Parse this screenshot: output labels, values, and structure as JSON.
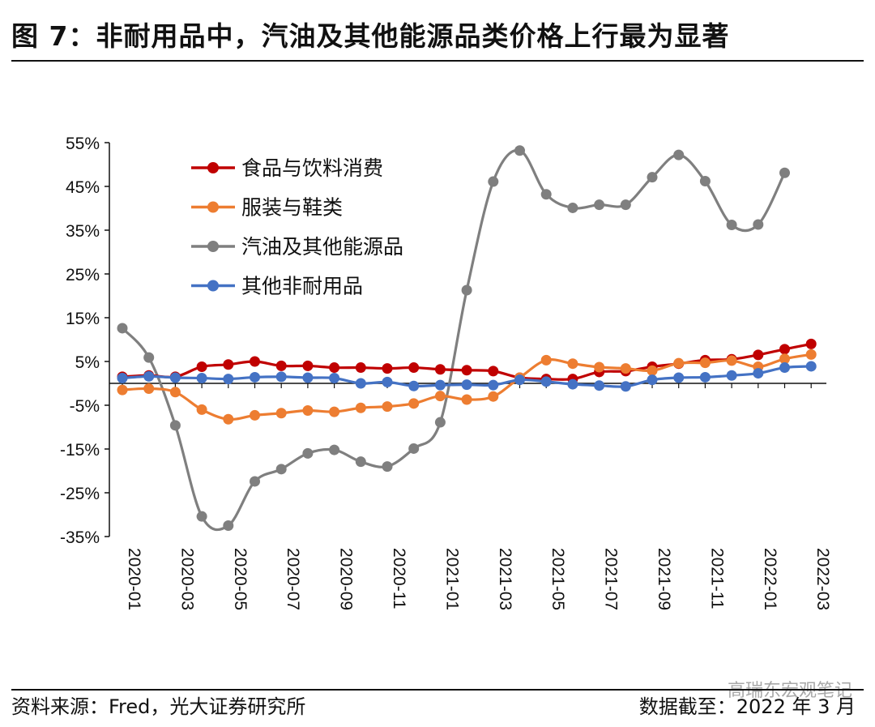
{
  "header": {
    "title": "图 7：非耐用品中，汽油及其他能源品类价格上行最为显著"
  },
  "footer": {
    "source": "资料来源：Fred，光大证券研究所",
    "cutoff": "数据截至：2022 年 3 月",
    "watermark": "高瑞东宏观笔记"
  },
  "chart_data": {
    "type": "line",
    "title": "",
    "xlabel": "",
    "ylabel": "",
    "ylim": [
      -35,
      55
    ],
    "y_ticks": [
      55,
      45,
      35,
      25,
      15,
      5,
      -5,
      -15,
      -25,
      -35
    ],
    "y_tick_labels": [
      "55%",
      "45%",
      "35%",
      "25%",
      "15%",
      "5%",
      "-5%",
      "-15%",
      "-25%",
      "-35%"
    ],
    "x": [
      "2020-01",
      "2020-02",
      "2020-03",
      "2020-04",
      "2020-05",
      "2020-06",
      "2020-07",
      "2020-08",
      "2020-09",
      "2020-10",
      "2020-11",
      "2020-12",
      "2021-01",
      "2021-02",
      "2021-03",
      "2021-04",
      "2021-05",
      "2021-06",
      "2021-07",
      "2021-08",
      "2021-09",
      "2021-10",
      "2021-11",
      "2021-12",
      "2022-01",
      "2022-02",
      "2022-03"
    ],
    "x_tick_labels": [
      "2020-01",
      "2020-03",
      "2020-05",
      "2020-07",
      "2020-09",
      "2020-11",
      "2021-01",
      "2021-03",
      "2021-05",
      "2021-07",
      "2021-09",
      "2021-11",
      "2022-01",
      "2022-03"
    ],
    "grid": false,
    "legend_position": "top-left",
    "series": [
      {
        "name": "食品与饮料消费",
        "color": "#c00000",
        "values": [
          1.5,
          1.8,
          1.5,
          3.8,
          4.3,
          5.0,
          4.0,
          4.0,
          3.6,
          3.6,
          3.4,
          3.6,
          3.2,
          3.0,
          2.8,
          1.3,
          1.0,
          1.0,
          2.6,
          2.8,
          3.8,
          4.5,
          5.3,
          5.5,
          6.5,
          7.8,
          9.0
        ]
      },
      {
        "name": "服装与鞋类",
        "color": "#ed7d31",
        "values": [
          -1.5,
          -1.2,
          -2.0,
          -6.0,
          -8.2,
          -7.3,
          -6.8,
          -6.2,
          -6.5,
          -5.6,
          -5.3,
          -4.6,
          -2.9,
          -3.7,
          -3.0,
          1.3,
          5.3,
          4.5,
          3.7,
          3.4,
          2.9,
          4.6,
          4.7,
          5.2,
          3.8,
          5.6,
          6.6
        ]
      },
      {
        "name": "汽油及其他能源品",
        "color": "#7f7f7f",
        "values": [
          12.6,
          5.9,
          -9.6,
          -30.4,
          -32.5,
          -22.4,
          -19.6,
          -16.0,
          -15.2,
          -17.9,
          -19.0,
          -14.9,
          -8.9,
          21.3,
          46.1,
          53.2,
          43.2,
          40.1,
          40.8,
          40.8,
          47.1,
          52.2,
          46.2,
          36.2,
          36.3,
          48.1,
          null
        ]
      },
      {
        "name": "其他非耐用品",
        "color": "#4472c4",
        "values": [
          1.2,
          1.6,
          1.3,
          1.2,
          1.0,
          1.4,
          1.5,
          1.3,
          1.2,
          0.0,
          0.3,
          -0.6,
          -0.4,
          -0.3,
          -0.4,
          0.8,
          0.4,
          -0.2,
          -0.5,
          -0.7,
          0.8,
          1.3,
          1.4,
          1.8,
          2.3,
          3.6,
          3.9
        ]
      }
    ]
  }
}
